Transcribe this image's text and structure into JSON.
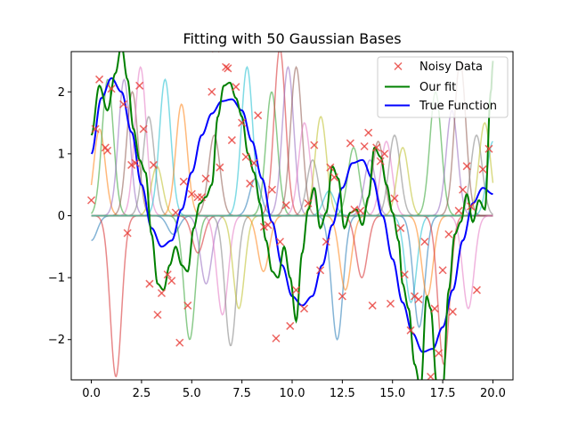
{
  "chart_data": {
    "type": "line",
    "title": "Fitting with 50 Gaussian Bases",
    "xlabel": "",
    "ylabel": "",
    "xlim": [
      -1.0,
      21.0
    ],
    "ylim": [
      -2.65,
      2.65
    ],
    "x_ticks": [
      0.0,
      2.5,
      5.0,
      7.5,
      10.0,
      12.5,
      15.0,
      17.5,
      20.0
    ],
    "x_tick_labels": [
      "0.0",
      "2.5",
      "5.0",
      "7.5",
      "10.0",
      "12.5",
      "15.0",
      "17.5",
      "20.0"
    ],
    "y_ticks": [
      -2,
      -1,
      0,
      1,
      2
    ],
    "y_tick_labels": [
      "−2",
      "−1",
      "0",
      "1",
      "2"
    ],
    "grid": false,
    "legend_position": "top-right",
    "legend": [
      {
        "label": "Noisy Data",
        "marker": "x",
        "color": "#e8413c"
      },
      {
        "label": "Our fit",
        "line": true,
        "color": "#008000"
      },
      {
        "label": "True Function",
        "line": true,
        "color": "#0000ff"
      }
    ],
    "colors": {
      "noisy": "#e8413c",
      "fit": "#008000",
      "true": "#0000ff",
      "bases": [
        "#1f77b4",
        "#ff7f0e",
        "#2ca02c",
        "#d62728",
        "#9467bd",
        "#8c564b",
        "#e377c2",
        "#7f7f7f",
        "#bcbd22",
        "#17becf"
      ]
    },
    "basis": {
      "count": 50,
      "x_start": 0.0,
      "x_end": 20.0,
      "width": 0.4
    },
    "basis_weights": [
      -0.4,
      1.4,
      2.2,
      -2.6,
      2.2,
      2.0,
      2.4,
      1.6,
      0.8,
      2.2,
      -0.3,
      1.8,
      -2.0,
      -0.6,
      -1.1,
      1.3,
      -1.6,
      -2.1,
      -1.5,
      2.4,
      0.6,
      -0.9,
      2.0,
      2.7,
      2.4,
      2.4,
      1.5,
      0.9,
      1.6,
      0.4,
      -2.0,
      -1.2,
      1.1,
      -1.0,
      0.9,
      1.2,
      1.2,
      1.3,
      1.1,
      -1.4,
      -1.8,
      -1.3,
      2.0,
      -2.4,
      1.7,
      2.5,
      -1.5,
      1.3,
      1.5,
      1.2
    ],
    "noisy_data": {
      "x": [
        0.0,
        0.2,
        0.4,
        0.7,
        0.8,
        1.0,
        1.6,
        1.8,
        2.0,
        2.2,
        2.4,
        2.6,
        2.9,
        3.1,
        3.3,
        3.5,
        3.8,
        4.0,
        4.2,
        4.4,
        4.6,
        4.8,
        5.0,
        5.3,
        5.5,
        5.7,
        6.0,
        6.2,
        6.4,
        6.7,
        6.8,
        7.0,
        7.2,
        7.5,
        7.7,
        7.9,
        8.1,
        8.3,
        8.6,
        8.8,
        9.0,
        9.2,
        9.4,
        9.7,
        9.9,
        10.2,
        10.6,
        10.8,
        11.1,
        11.4,
        11.7,
        11.9,
        12.1,
        12.5,
        12.9,
        13.1,
        13.4,
        13.6,
        13.8,
        14.0,
        14.2,
        14.4,
        14.6,
        14.9,
        15.1,
        15.4,
        15.6,
        15.9,
        16.1,
        16.3,
        16.6,
        16.9,
        17.1,
        17.3,
        17.5,
        17.8,
        18.0,
        18.3,
        18.5,
        18.7,
        18.9,
        19.2,
        19.5,
        19.8
      ],
      "y": [
        0.25,
        1.4,
        2.2,
        1.1,
        1.05,
        2.05,
        1.8,
        -0.28,
        0.82,
        0.85,
        2.1,
        1.4,
        -1.1,
        0.82,
        -1.6,
        -1.25,
        -0.95,
        -1.05,
        0.05,
        -2.05,
        0.55,
        -1.45,
        0.35,
        0.3,
        0.3,
        0.6,
        2.0,
        2.7,
        0.78,
        2.4,
        2.38,
        1.22,
        2.08,
        1.5,
        0.95,
        0.52,
        0.85,
        1.62,
        -0.18,
        -0.15,
        0.42,
        -1.98,
        -0.42,
        0.17,
        -1.78,
        -1.2,
        -1.5,
        0.2,
        1.14,
        -0.88,
        -0.42,
        0.78,
        0.62,
        -1.3,
        1.17,
        0.1,
        0.08,
        1.12,
        1.34,
        -1.45,
        1.1,
        0.88,
        1.0,
        -1.42,
        0.28,
        -0.2,
        -0.95,
        -1.85,
        -1.3,
        -1.35,
        -0.42,
        -2.6,
        -1.5,
        -2.22,
        -0.88,
        -0.3,
        -1.55,
        0.08,
        0.42,
        0.8,
        0.15,
        -1.2,
        0.75,
        1.08
      ]
    }
  }
}
